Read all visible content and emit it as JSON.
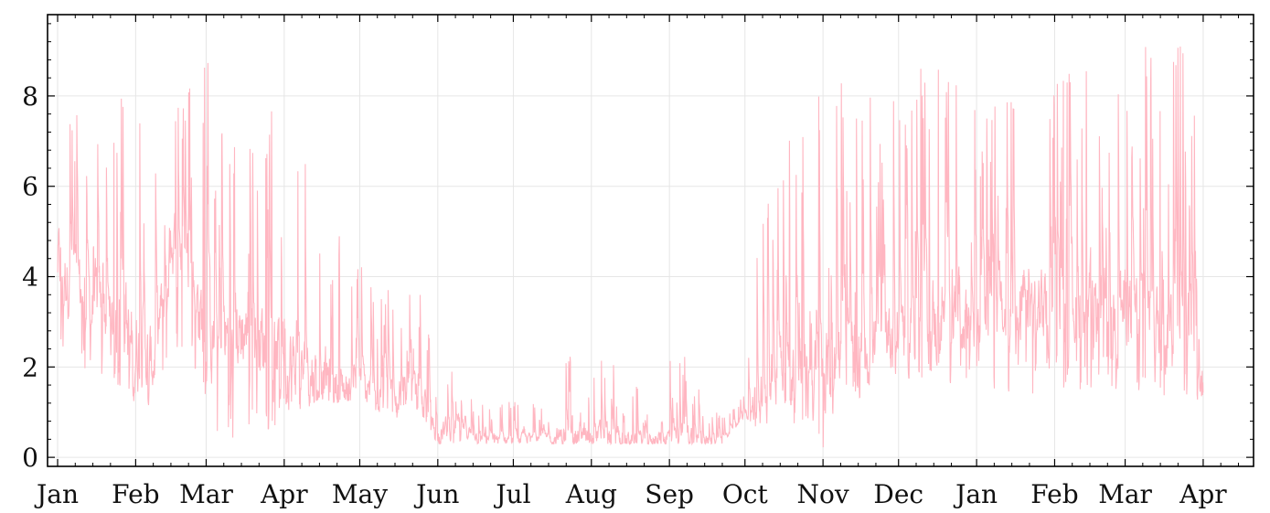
{
  "chart_data": {
    "type": "line",
    "title": "",
    "xlabel": "",
    "ylabel": "",
    "grid": true,
    "legend": "none",
    "xlim": [
      "2020-12-28",
      "2022-04-21"
    ],
    "ylim": [
      -0.2,
      9.8
    ],
    "x_ticks": [
      {
        "label": "Jan",
        "date": "2021-01-01"
      },
      {
        "label": "Feb",
        "date": "2021-02-01"
      },
      {
        "label": "Mar",
        "date": "2021-03-01"
      },
      {
        "label": "Apr",
        "date": "2021-04-01"
      },
      {
        "label": "May",
        "date": "2021-05-01"
      },
      {
        "label": "Jun",
        "date": "2021-06-01"
      },
      {
        "label": "Jul",
        "date": "2021-07-01"
      },
      {
        "label": "Aug",
        "date": "2021-08-01"
      },
      {
        "label": "Sep",
        "date": "2021-09-01"
      },
      {
        "label": "Oct",
        "date": "2021-10-01"
      },
      {
        "label": "Nov",
        "date": "2021-11-01"
      },
      {
        "label": "Dec",
        "date": "2021-12-01"
      },
      {
        "label": "Jan",
        "date": "2022-01-01"
      },
      {
        "label": "Feb",
        "date": "2022-02-01"
      },
      {
        "label": "Mar",
        "date": "2022-03-01"
      },
      {
        "label": "Apr",
        "date": "2022-04-01"
      }
    ],
    "y_ticks": [
      0,
      2,
      4,
      6,
      8
    ],
    "series_color": "#ffb6c1",
    "series": [
      {
        "x": [
          "2021-01-01",
          "2021-01-08",
          "2021-01-15",
          "2021-01-22",
          "2021-02-01",
          "2021-02-08",
          "2021-02-15",
          "2021-02-22",
          "2021-03-01",
          "2021-03-08",
          "2021-03-15",
          "2021-03-22",
          "2021-04-01",
          "2021-04-08",
          "2021-04-15",
          "2021-04-22",
          "2021-05-01",
          "2021-05-08",
          "2021-05-15",
          "2021-05-22",
          "2021-06-01",
          "2021-06-08",
          "2021-06-15",
          "2021-06-22",
          "2021-07-01",
          "2021-07-08",
          "2021-07-15",
          "2021-07-22",
          "2021-08-01",
          "2021-08-08",
          "2021-08-15",
          "2021-08-22",
          "2021-09-01",
          "2021-09-08",
          "2021-09-15",
          "2021-09-22",
          "2021-10-01",
          "2021-10-08",
          "2021-10-15",
          "2021-10-22",
          "2021-11-01",
          "2021-11-08",
          "2021-11-15",
          "2021-11-22",
          "2021-12-01",
          "2021-12-08",
          "2021-12-15",
          "2021-12-22",
          "2022-01-01",
          "2022-01-08",
          "2022-01-15",
          "2022-01-22",
          "2022-02-01",
          "2022-02-08",
          "2022-02-15",
          "2022-02-22",
          "2022-03-01",
          "2022-03-08",
          "2022-03-15",
          "2022-03-22",
          "2022-04-01"
        ],
        "mid": [
          4.3,
          3.8,
          3.4,
          3.0,
          2.5,
          2.1,
          4.8,
          4.2,
          2.6,
          2.6,
          2.8,
          2.6,
          2.3,
          1.9,
          1.8,
          1.6,
          1.6,
          1.4,
          1.6,
          1.5,
          0.5,
          0.7,
          0.5,
          0.4,
          0.4,
          0.45,
          0.4,
          0.5,
          0.5,
          0.45,
          0.4,
          0.4,
          0.45,
          0.5,
          0.4,
          0.35,
          1.0,
          1.3,
          2.4,
          1.6,
          1.5,
          2.5,
          2.2,
          2.6,
          3.0,
          3.1,
          3.0,
          3.2,
          3.2,
          3.1,
          3.0,
          3.4,
          3.2,
          3.5,
          3.3,
          3.4,
          3.2,
          3.0,
          2.9,
          2.8,
          2.2
        ],
        "low": [
          2.3,
          2.0,
          1.8,
          1.8,
          1.0,
          0.8,
          1.8,
          2.0,
          1.0,
          0.3,
          0.4,
          0.5,
          0.8,
          1.0,
          1.3,
          1.2,
          1.3,
          1.0,
          0.8,
          1.2,
          0.3,
          0.3,
          0.3,
          0.3,
          0.3,
          0.3,
          0.3,
          0.3,
          0.3,
          0.3,
          0.3,
          0.3,
          0.3,
          0.3,
          0.3,
          0.3,
          0.9,
          0.5,
          1.2,
          0.6,
          0.1,
          1.2,
          1.3,
          1.6,
          1.7,
          1.7,
          1.5,
          1.6,
          1.5,
          1.4,
          1.4,
          1.4,
          1.5,
          1.5,
          1.5,
          1.5,
          1.4,
          1.3,
          1.3,
          1.2,
          1.3
        ],
        "high": [
          8.2,
          8.0,
          7.8,
          7.9,
          8.5,
          6.5,
          7.8,
          8.2,
          8.9,
          8.0,
          7.4,
          7.8,
          8.1,
          6.4,
          7.0,
          5.6,
          4.3,
          4.1,
          3.6,
          4.0,
          2.8,
          2.1,
          1.5,
          1.3,
          1.3,
          1.2,
          1.2,
          2.7,
          2.4,
          2.6,
          2.0,
          1.4,
          2.3,
          2.5,
          1.2,
          0.9,
          1.4,
          6.1,
          6.7,
          7.3,
          8.3,
          8.3,
          7.9,
          8.1,
          8.3,
          8.8,
          9.0,
          8.3,
          8.0,
          7.9,
          8.4,
          8.6,
          8.5,
          8.9,
          8.7,
          8.6,
          9.3,
          9.4,
          8.7,
          9.5,
          7.9
        ]
      }
    ]
  }
}
